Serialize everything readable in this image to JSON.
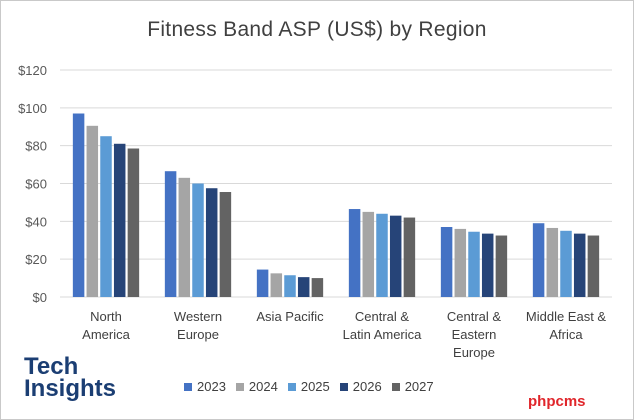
{
  "chart_data": {
    "type": "bar",
    "title": "Fitness Band ASP (US$) by Region",
    "categories": [
      [
        "North",
        "America"
      ],
      [
        "Western",
        "Europe"
      ],
      [
        "Asia Pacific"
      ],
      [
        "Central &",
        "Latin America"
      ],
      [
        "Central &",
        "Eastern",
        "Europe"
      ],
      [
        "Middle East &",
        "Africa"
      ]
    ],
    "series": [
      {
        "name": "2023",
        "color": "#4472c4",
        "values": [
          97,
          66.5,
          14.5,
          46.5,
          37,
          39
        ]
      },
      {
        "name": "2024",
        "color": "#a5a5a5",
        "values": [
          90.5,
          63,
          12.5,
          45,
          36,
          36.5
        ]
      },
      {
        "name": "2025",
        "color": "#5b9bd5",
        "values": [
          85,
          60,
          11.5,
          44,
          34.5,
          35
        ]
      },
      {
        "name": "2026",
        "color": "#264478",
        "values": [
          81,
          57.5,
          10.5,
          43,
          33.5,
          33.5
        ]
      },
      {
        "name": "2027",
        "color": "#636363",
        "values": [
          78.5,
          55.5,
          10,
          42,
          32.5,
          32.5
        ]
      }
    ],
    "ylim": [
      0,
      120
    ],
    "yticks": [
      0,
      20,
      40,
      60,
      80,
      100,
      120
    ],
    "ytick_labels": [
      "$0",
      "$20",
      "$40",
      "$60",
      "$80",
      "$100",
      "$120"
    ],
    "xlabel": "",
    "ylabel": "",
    "grid": true,
    "legend_position": "bottom"
  },
  "branding": {
    "logo_line1": "Tech",
    "logo_line2": "Insights",
    "watermark": "phpcms"
  }
}
